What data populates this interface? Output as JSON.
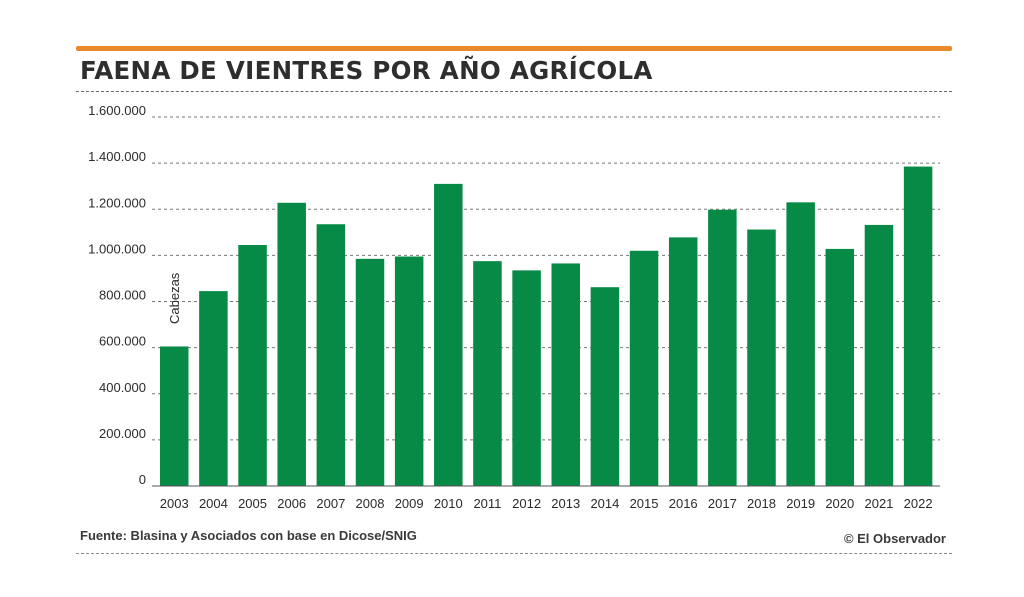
{
  "colors": {
    "bar": "#078a45",
    "accent_rule": "#e8892b",
    "grid": "#777777",
    "text": "#2b2b2b"
  },
  "footer": {
    "source": "Fuente: Blasina y Asociados con base en Dicose/SNIG",
    "credit": "© El Observador"
  },
  "chart_data": {
    "type": "bar",
    "title": "FAENA DE VIENTRES POR AÑO AGRÍCOLA",
    "ylabel": "Cabezas",
    "xlabel": "",
    "ylim": [
      0,
      1600000
    ],
    "yticks": [
      0,
      200000,
      400000,
      600000,
      800000,
      1000000,
      1200000,
      1400000,
      1600000
    ],
    "ytick_labels": [
      "0",
      "200.000",
      "400.000",
      "600.000",
      "800.000",
      "1.000.000",
      "1.200.000",
      "1.400.000",
      "1.600.000"
    ],
    "grid": true,
    "categories": [
      "2003",
      "2004",
      "2005",
      "2006",
      "2007",
      "2008",
      "2009",
      "2010",
      "2011",
      "2012",
      "2013",
      "2014",
      "2015",
      "2016",
      "2017",
      "2018",
      "2019",
      "2020",
      "2021",
      "2022"
    ],
    "values": [
      605000,
      845000,
      1045000,
      1228000,
      1135000,
      985000,
      995000,
      1310000,
      975000,
      935000,
      965000,
      862000,
      1020000,
      1078000,
      1198000,
      1112000,
      1230000,
      1028000,
      1132000,
      1385000
    ]
  }
}
